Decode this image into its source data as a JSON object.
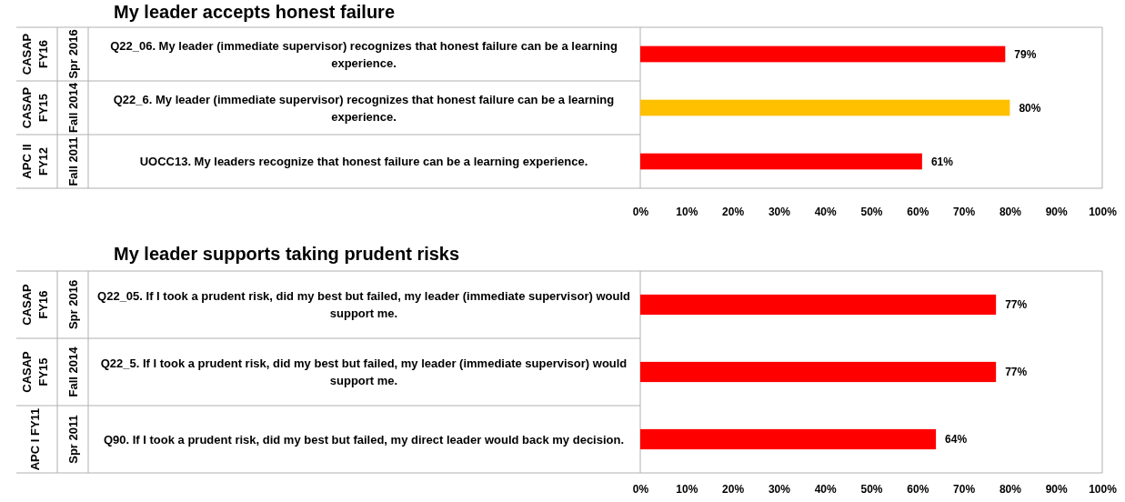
{
  "chart_data": [
    {
      "type": "bar",
      "orientation": "horizontal",
      "title": "My leader accepts honest failure",
      "categories": [
        "Q22_06. My leader (immediate supervisor) recognizes that honest failure can be a learning experience.",
        "Q22_6. My leader (immediate supervisor) recognizes that honest failure can be a learning experience.",
        "UOCC13. My leaders recognize that honest failure can be a learning experience."
      ],
      "values": [
        79,
        80,
        61
      ],
      "colors": [
        "#ff0000",
        "#ffc000",
        "#ff0000"
      ],
      "value_labels": [
        "79%",
        "80%",
        "61%"
      ],
      "annotations": [
        "CASAP\nFY16",
        "Spr 2016",
        "CASAP\nFY15",
        "Fall 2014",
        "APC II\nFY12",
        "Fall 2011"
      ],
      "xlim": [
        0,
        100
      ],
      "xticks": [
        {
          "value": 0,
          "label": "0%"
        },
        {
          "value": 10,
          "label": "10%"
        },
        {
          "value": 20,
          "label": "20%"
        },
        {
          "value": 30,
          "label": "30%"
        },
        {
          "value": 40,
          "label": "40%"
        },
        {
          "value": 50,
          "label": "50%"
        },
        {
          "value": 60,
          "label": "60%"
        },
        {
          "value": 70,
          "label": "70%"
        },
        {
          "value": 80,
          "label": "80%"
        },
        {
          "value": 90,
          "label": "90%"
        },
        {
          "value": 100,
          "label": "100%"
        }
      ],
      "grid": false
    },
    {
      "type": "bar",
      "orientation": "horizontal",
      "title": "My leader supports taking prudent risks",
      "categories": [
        "Q22_05. If I took a prudent risk, did my best but failed, my leader (immediate supervisor) would support me.",
        "Q22_5. If I took a prudent risk, did my best but failed, my leader (immediate supervisor) would support me.",
        "Q90.  If I took a prudent risk, did my best but failed, my direct leader would back my decision."
      ],
      "values": [
        77,
        77,
        64
      ],
      "colors": [
        "#ff0000",
        "#ff0000",
        "#ff0000"
      ],
      "value_labels": [
        "77%",
        "77%",
        "64%"
      ],
      "annotations": [
        "CASAP\nFY16",
        "Spr 2016",
        "CASAP\nFY15",
        "Fall 2014",
        "APC I FY11",
        "Spr 2011"
      ],
      "xlim": [
        0,
        100
      ],
      "xticks": [
        {
          "value": 0,
          "label": "0%"
        },
        {
          "value": 10,
          "label": "10%"
        },
        {
          "value": 20,
          "label": "20%"
        },
        {
          "value": 30,
          "label": "30%"
        },
        {
          "value": 40,
          "label": "40%"
        },
        {
          "value": 50,
          "label": "50%"
        },
        {
          "value": 60,
          "label": "60%"
        },
        {
          "value": 70,
          "label": "70%"
        },
        {
          "value": 80,
          "label": "80%"
        },
        {
          "value": 90,
          "label": "90%"
        },
        {
          "value": 100,
          "label": "100%"
        }
      ],
      "grid": false
    }
  ]
}
